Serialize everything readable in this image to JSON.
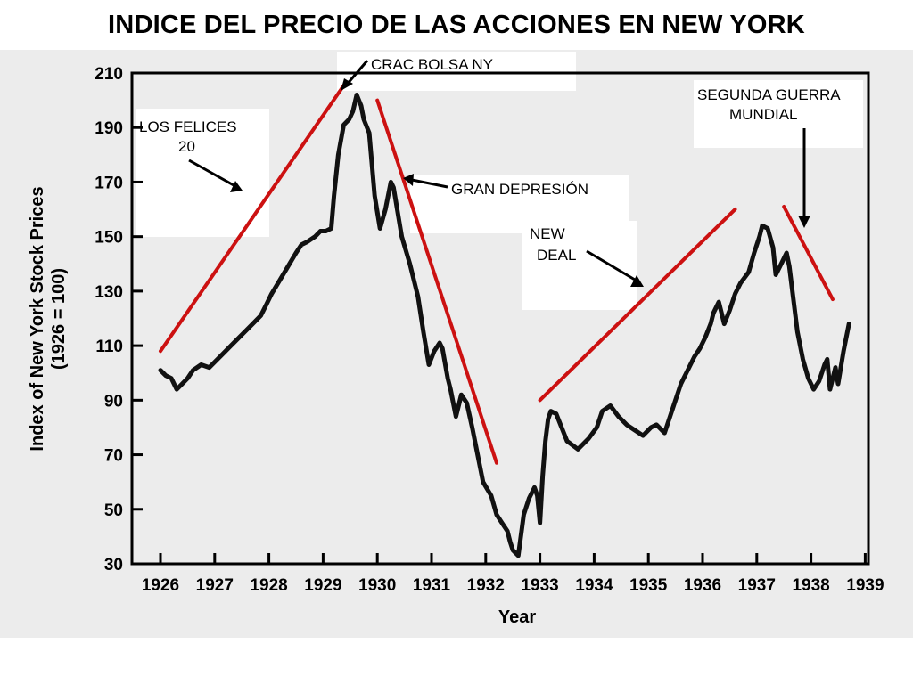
{
  "title": "INDICE DEL PRECIO DE LAS ACCIONES EN NEW YORK",
  "chart_data": {
    "type": "line",
    "title": "INDICE DEL PRECIO DE LAS ACCIONES EN NEW YORK",
    "xlabel": "Year",
    "ylabel_lines": [
      "Index of New York Stock Prices",
      "(1926 = 100)"
    ],
    "xlim": [
      1926,
      1939
    ],
    "ylim": [
      30,
      210
    ],
    "xticks": [
      1926,
      1927,
      1928,
      1929,
      1930,
      1931,
      1932,
      1933,
      1934,
      1935,
      1936,
      1937,
      1938,
      1939
    ],
    "yticks": [
      30,
      50,
      70,
      90,
      110,
      130,
      150,
      170,
      190,
      210
    ],
    "grid": false,
    "series": [
      {
        "color": "#111111",
        "x": [
          1926.0,
          1926.1,
          1926.2,
          1926.3,
          1926.4,
          1926.5,
          1926.6,
          1926.75,
          1926.9,
          1927.1,
          1927.3,
          1927.5,
          1927.7,
          1927.85,
          1927.95,
          1928.05,
          1928.2,
          1928.35,
          1928.5,
          1928.6,
          1928.7,
          1928.85,
          1928.95,
          1929.05,
          1929.15,
          1929.2,
          1929.28,
          1929.38,
          1929.48,
          1929.55,
          1929.62,
          1929.7,
          1929.75,
          1929.85,
          1929.95,
          1930.05,
          1930.15,
          1930.25,
          1930.3,
          1930.45,
          1930.6,
          1930.75,
          1930.85,
          1930.95,
          1931.05,
          1931.15,
          1931.2,
          1931.3,
          1931.35,
          1931.45,
          1931.55,
          1931.65,
          1931.75,
          1931.85,
          1931.95,
          1932.1,
          1932.2,
          1932.3,
          1932.4,
          1932.45,
          1932.5,
          1932.6,
          1932.7,
          1932.8,
          1932.9,
          1932.95,
          1933.0,
          1933.05,
          1933.1,
          1933.15,
          1933.2,
          1933.3,
          1933.4,
          1933.5,
          1933.7,
          1933.9,
          1934.05,
          1934.15,
          1934.3,
          1934.45,
          1934.6,
          1934.75,
          1934.9,
          1935.05,
          1935.15,
          1935.3,
          1935.5,
          1935.6,
          1935.7,
          1935.85,
          1935.95,
          1936.05,
          1936.15,
          1936.2,
          1936.3,
          1936.4,
          1936.5,
          1936.6,
          1936.7,
          1936.85,
          1936.95,
          1937.05,
          1937.1,
          1937.2,
          1937.3,
          1937.35,
          1937.45,
          1937.55,
          1937.6,
          1937.75,
          1937.85,
          1937.95,
          1938.05,
          1938.15,
          1938.25,
          1938.3,
          1938.35,
          1938.45,
          1938.5,
          1938.6,
          1938.7
        ],
        "y": [
          101,
          99,
          98,
          94,
          96,
          98,
          101,
          103,
          102,
          106,
          110,
          114,
          118,
          121,
          125,
          129,
          134,
          139,
          144,
          147,
          148,
          150,
          152,
          152,
          153,
          165,
          180,
          191,
          193,
          196,
          202,
          198,
          193,
          188,
          165,
          153,
          160,
          170,
          168,
          150,
          140,
          128,
          115,
          103,
          108,
          111,
          109,
          98,
          94,
          84,
          92,
          89,
          80,
          70,
          60,
          55,
          48,
          45,
          42,
          38,
          35,
          33,
          48,
          54,
          58,
          55,
          45,
          62,
          75,
          83,
          86,
          85,
          80,
          75,
          72,
          76,
          80,
          86,
          88,
          84,
          81,
          79,
          77,
          80,
          81,
          78,
          90,
          96,
          100,
          106,
          109,
          113,
          118,
          122,
          126,
          118,
          123,
          129,
          133,
          137,
          144,
          150,
          154,
          153,
          146,
          136,
          140,
          144,
          139,
          115,
          105,
          98,
          94,
          97,
          103,
          105,
          94,
          102,
          96,
          108,
          118
        ]
      }
    ],
    "trend_lines": [
      {
        "color": "#cc1111",
        "x": [
          1926.0,
          1929.4
        ],
        "y": [
          108,
          206
        ]
      },
      {
        "color": "#cc1111",
        "x": [
          1930.0,
          1932.2
        ],
        "y": [
          200,
          67
        ]
      },
      {
        "color": "#cc1111",
        "x": [
          1933.0,
          1936.6
        ],
        "y": [
          90,
          160
        ]
      },
      {
        "color": "#cc1111",
        "x": [
          1937.5,
          1938.4
        ],
        "y": [
          161,
          127
        ]
      }
    ],
    "annotations": [
      {
        "lines": [
          "CRAC BOLSA NY"
        ],
        "data_x": 1929.6
      },
      {
        "lines": [
          "LOS FELICES",
          "20"
        ]
      },
      {
        "lines": [
          "GRAN DEPRESIÓN"
        ]
      },
      {
        "lines": [
          "NEW",
          "DEAL"
        ]
      },
      {
        "lines": [
          "SEGUNDA GUERRA",
          "MUNDIAL"
        ]
      }
    ]
  }
}
